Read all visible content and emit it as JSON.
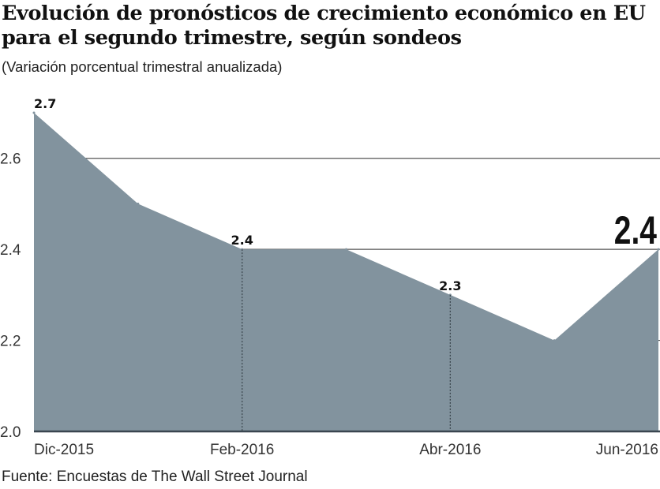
{
  "chart_data": {
    "type": "area",
    "title": "Evolución de pronósticos de crecimiento económico en EU para el segundo trimestre, según sondeos",
    "subtitle": "(Variación porcentual trimestral anualizada)",
    "source": "Fuente: Encuestas de The Wall Street Journal",
    "xlabel": "",
    "ylabel": "",
    "x_tick_labels": [
      "Dic-2015",
      "Feb-2016",
      "Abr-2016",
      "Jun-2016"
    ],
    "x_tick_indices": [
      0,
      2,
      4,
      6
    ],
    "points": 7,
    "values": [
      2.7,
      2.5,
      2.4,
      2.4,
      2.3,
      2.2,
      2.4
    ],
    "ylim": [
      2.0,
      2.7
    ],
    "y_ticks": [
      "2.0",
      "2.2",
      "2.4",
      "2.6"
    ],
    "y_tick_values": [
      2.0,
      2.2,
      2.4,
      2.6
    ],
    "data_labels": [
      {
        "index": 0,
        "text": "2.7"
      },
      {
        "index": 2,
        "text": "2.4"
      },
      {
        "index": 4,
        "text": "2.3"
      }
    ],
    "highlight_label": {
      "index": 6,
      "text": "2.4"
    },
    "grid": true,
    "fill_color": "#82939e",
    "legend": "none"
  }
}
